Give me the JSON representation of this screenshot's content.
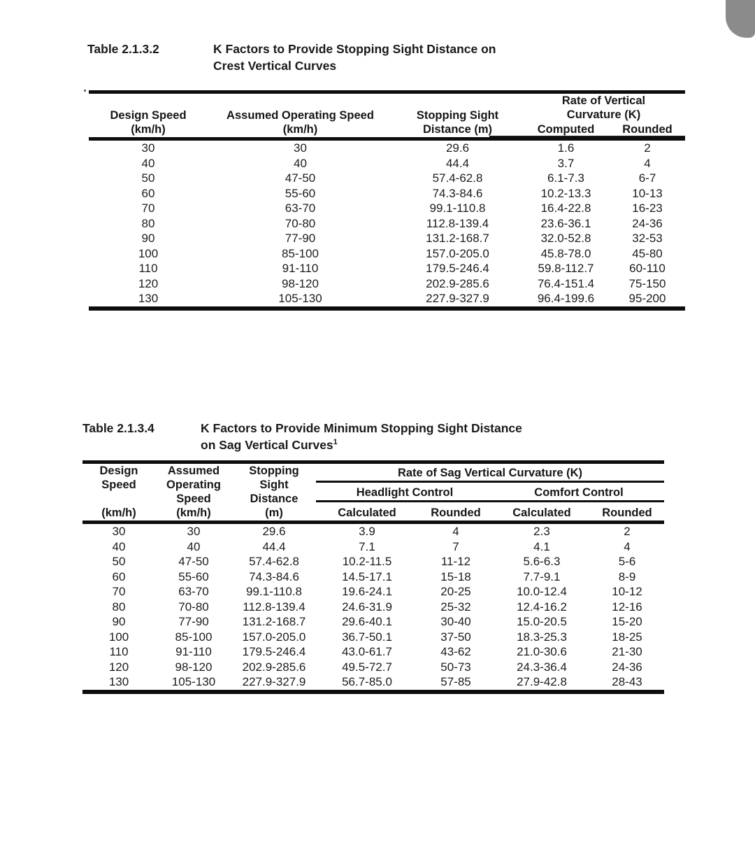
{
  "colors": {
    "background": "#ffffff",
    "corner_tab": "#8b8b8b",
    "rule": "#0d0d0d",
    "text": "#1c1c1c"
  },
  "table1": {
    "label": "Table 2.1.3.2",
    "title_line1": "K Factors to Provide Stopping Sight Distance on",
    "title_line2": "Crest Vertical Curves",
    "headers": {
      "design_speed": "Design Speed\n(km/h)",
      "assumed_operating_speed": "Assumed Operating Speed\n(km/h)",
      "stopping_sight_distance": "Stopping Sight\nDistance (m)",
      "k_group": "Rate of Vertical\nCurvature (K)",
      "computed": "Computed",
      "rounded": "Rounded"
    },
    "rows": [
      [
        "30",
        "30",
        "29.6",
        "1.6",
        "2"
      ],
      [
        "40",
        "40",
        "44.4",
        "3.7",
        "4"
      ],
      [
        "50",
        "47-50",
        "57.4-62.8",
        "6.1-7.3",
        "6-7"
      ],
      [
        "60",
        "55-60",
        "74.3-84.6",
        "10.2-13.3",
        "10-13"
      ],
      [
        "70",
        "63-70",
        "99.1-110.8",
        "16.4-22.8",
        "16-23"
      ],
      [
        "80",
        "70-80",
        "112.8-139.4",
        "23.6-36.1",
        "24-36"
      ],
      [
        "90",
        "77-90",
        "131.2-168.7",
        "32.0-52.8",
        "32-53"
      ],
      [
        "100",
        "85-100",
        "157.0-205.0",
        "45.8-78.0",
        "45-80"
      ],
      [
        "110",
        "91-110",
        "179.5-246.4",
        "59.8-112.7",
        "60-110"
      ],
      [
        "120",
        "98-120",
        "202.9-285.6",
        "76.4-151.4",
        "75-150"
      ],
      [
        "130",
        "105-130",
        "227.9-327.9",
        "96.4-199.6",
        "95-200"
      ]
    ]
  },
  "table2": {
    "label": "Table 2.1.3.4",
    "title_line1": "K Factors to Provide Minimum Stopping Sight Distance",
    "title_line2": "on Sag Vertical Curves",
    "title_footnote": "1",
    "headers": {
      "design_speed": "Design\nSpeed\n \n(km/h)",
      "assumed_operating_speed": "Assumed\nOperating\nSpeed\n(km/h)",
      "stopping_sight_distance": "Stopping\nSight\nDistance\n(m)",
      "k_group": "Rate of Sag Vertical Curvature (K)",
      "headlight_control": "Headlight Control",
      "comfort_control": "Comfort Control",
      "hl_calculated": "Calculated",
      "hl_rounded": "Rounded",
      "cc_calculated": "Calculated",
      "cc_rounded": "Rounded"
    },
    "rows": [
      [
        "30",
        "30",
        "29.6",
        "3.9",
        "4",
        "2.3",
        "2"
      ],
      [
        "40",
        "40",
        "44.4",
        "7.1",
        "7",
        "4.1",
        "4"
      ],
      [
        "50",
        "47-50",
        "57.4-62.8",
        "10.2-11.5",
        "11-12",
        "5.6-6.3",
        "5-6"
      ],
      [
        "60",
        "55-60",
        "74.3-84.6",
        "14.5-17.1",
        "15-18",
        "7.7-9.1",
        "8-9"
      ],
      [
        "70",
        "63-70",
        "99.1-110.8",
        "19.6-24.1",
        "20-25",
        "10.0-12.4",
        "10-12"
      ],
      [
        "80",
        "70-80",
        "112.8-139.4",
        "24.6-31.9",
        "25-32",
        "12.4-16.2",
        "12-16"
      ],
      [
        "90",
        "77-90",
        "131.2-168.7",
        "29.6-40.1",
        "30-40",
        "15.0-20.5",
        "15-20"
      ],
      [
        "100",
        "85-100",
        "157.0-205.0",
        "36.7-50.1",
        "37-50",
        "18.3-25.3",
        "18-25"
      ],
      [
        "110",
        "91-110",
        "179.5-246.4",
        "43.0-61.7",
        "43-62",
        "21.0-30.6",
        "21-30"
      ],
      [
        "120",
        "98-120",
        "202.9-285.6",
        "49.5-72.7",
        "50-73",
        "24.3-36.4",
        "24-36"
      ],
      [
        "130",
        "105-130",
        "227.9-327.9",
        "56.7-85.0",
        "57-85",
        "27.9-42.8",
        "28-43"
      ]
    ]
  }
}
